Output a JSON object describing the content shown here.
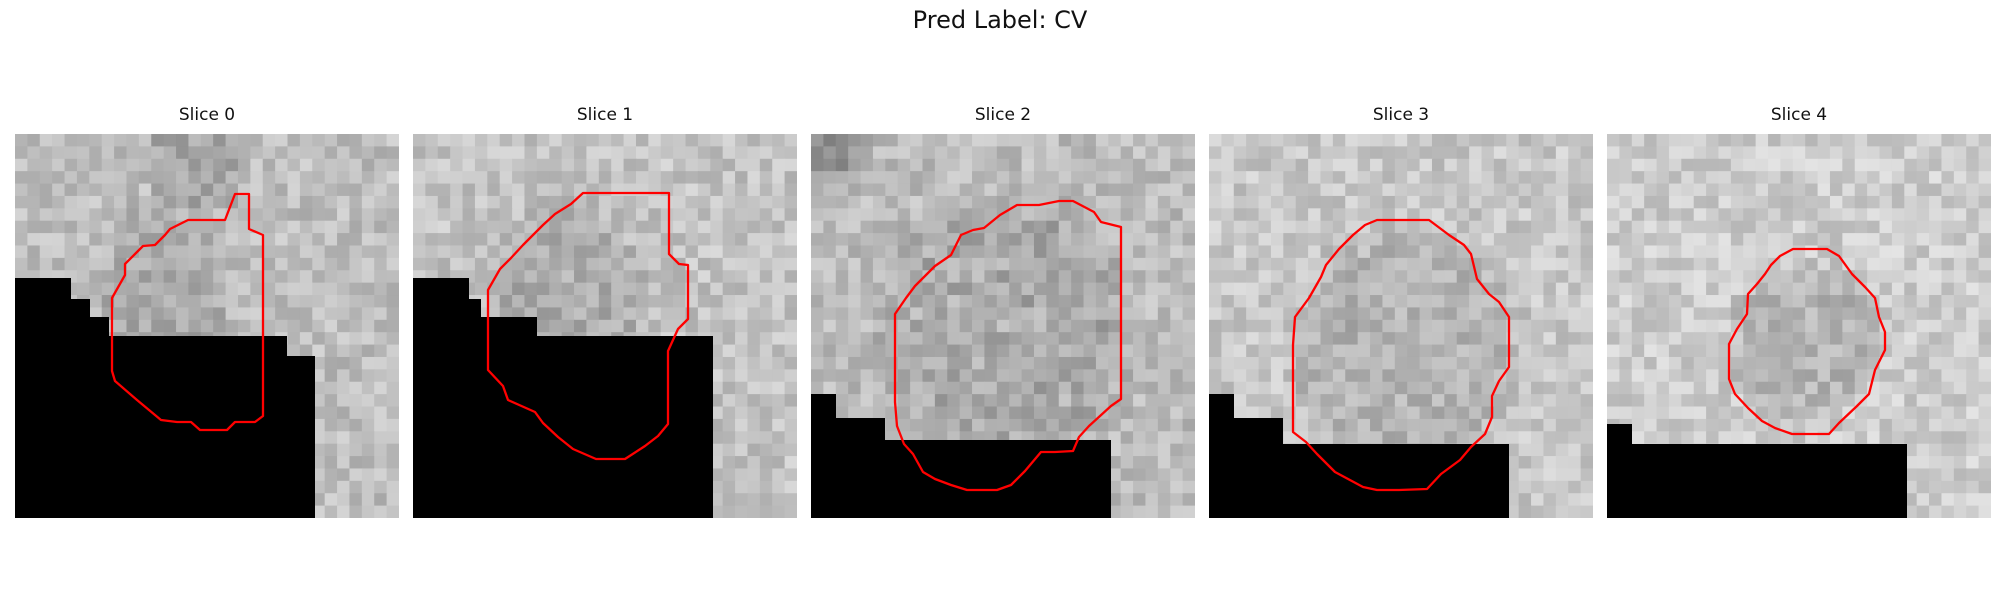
{
  "figure": {
    "title": "Pred Label: CV"
  },
  "style": {
    "contour_color": "#ff0000",
    "mask_color": "#000000",
    "grid": 31
  },
  "panels": [
    {
      "title": "Slice 0",
      "seed": 11,
      "base": 190,
      "tint": [
        168,
        172
      ],
      "mask_edge": [
        [
          0,
          15
        ],
        [
          6,
          15
        ],
        [
          6,
          17
        ],
        [
          9,
          17
        ],
        [
          9,
          19
        ],
        [
          14,
          19
        ],
        [
          14,
          21
        ],
        [
          27,
          21
        ],
        [
          27,
          23
        ],
        [
          31,
          23
        ]
      ],
      "contour": [
        [
          18,
          6
        ],
        [
          19,
          6
        ],
        [
          19,
          10
        ],
        [
          21,
          10
        ],
        [
          21,
          11
        ],
        [
          21,
          22
        ],
        [
          20,
          23
        ],
        [
          17,
          23
        ],
        [
          16,
          24
        ],
        [
          15,
          24
        ],
        [
          14,
          24
        ],
        [
          13,
          23
        ],
        [
          12,
          23
        ],
        [
          10,
          23
        ],
        [
          8,
          21
        ],
        [
          6,
          19
        ],
        [
          4,
          18
        ],
        [
          3,
          16
        ],
        [
          2,
          15
        ],
        [
          1,
          14
        ],
        [
          0,
          13
        ],
        [
          0,
          11
        ],
        [
          1,
          9
        ],
        [
          2,
          9
        ],
        [
          3,
          8
        ],
        [
          4,
          8
        ],
        [
          5,
          7
        ],
        [
          6,
          7
        ],
        [
          7,
          6
        ],
        [
          8,
          6
        ],
        [
          9,
          6
        ],
        [
          10,
          6
        ],
        [
          11,
          6
        ]
      ],
      "contour_offset": [
        8,
        0
      ],
      "contour_raw": [
        [
          19,
          6
        ],
        [
          19,
          10
        ],
        [
          21,
          10
        ],
        [
          21,
          22
        ],
        [
          20,
          23
        ],
        [
          17,
          23
        ],
        [
          16,
          24
        ],
        [
          15,
          24
        ],
        [
          14,
          24
        ],
        [
          13,
          23
        ],
        [
          12,
          23
        ],
        [
          10,
          23
        ],
        [
          8,
          21
        ],
        [
          6,
          19
        ],
        [
          4,
          18
        ],
        [
          3,
          16
        ],
        [
          2,
          15
        ],
        [
          1,
          14
        ],
        [
          0,
          13
        ],
        [
          0,
          11
        ],
        [
          1,
          9
        ],
        [
          2,
          9
        ],
        [
          3,
          8
        ],
        [
          4,
          8
        ],
        [
          5,
          7
        ],
        [
          6,
          7
        ],
        [
          7,
          6
        ],
        [
          8,
          6
        ],
        [
          9,
          6
        ],
        [
          10,
          6
        ],
        [
          11,
          6
        ],
        [
          12,
          6
        ]
      ]
    },
    {
      "title": "Slice 1",
      "seed": 23,
      "base": 195,
      "tint": [
        170,
        175
      ],
      "mask_edge": [
        [
          0,
          15
        ],
        [
          4,
          15
        ],
        [
          4,
          17
        ],
        [
          6,
          19
        ],
        [
          6,
          19
        ],
        [
          10,
          19
        ],
        [
          10,
          21
        ],
        [
          28,
          21
        ],
        [
          28,
          23
        ],
        [
          31,
          23
        ]
      ]
    },
    {
      "title": "Slice 2",
      "seed": 37,
      "base": 188,
      "tint": [
        162,
        182
      ],
      "mask_edge": [
        [
          0,
          21
        ],
        [
          2,
          21
        ],
        [
          2,
          23
        ],
        [
          6,
          23
        ],
        [
          6,
          25
        ],
        [
          31,
          25
        ]
      ]
    },
    {
      "title": "Slice 3",
      "seed": 51,
      "base": 200,
      "tint": [
        178,
        180
      ],
      "mask_edge": [
        [
          0,
          21
        ],
        [
          2,
          21
        ],
        [
          2,
          23
        ],
        [
          6,
          23
        ],
        [
          6,
          25
        ],
        [
          31,
          25
        ]
      ]
    },
    {
      "title": "Slice 4",
      "seed": 67,
      "base": 205,
      "tint": [
        180,
        182
      ],
      "mask_edge": [
        [
          0,
          23
        ],
        [
          2,
          23
        ],
        [
          2,
          25
        ],
        [
          31,
          25
        ]
      ]
    }
  ]
}
